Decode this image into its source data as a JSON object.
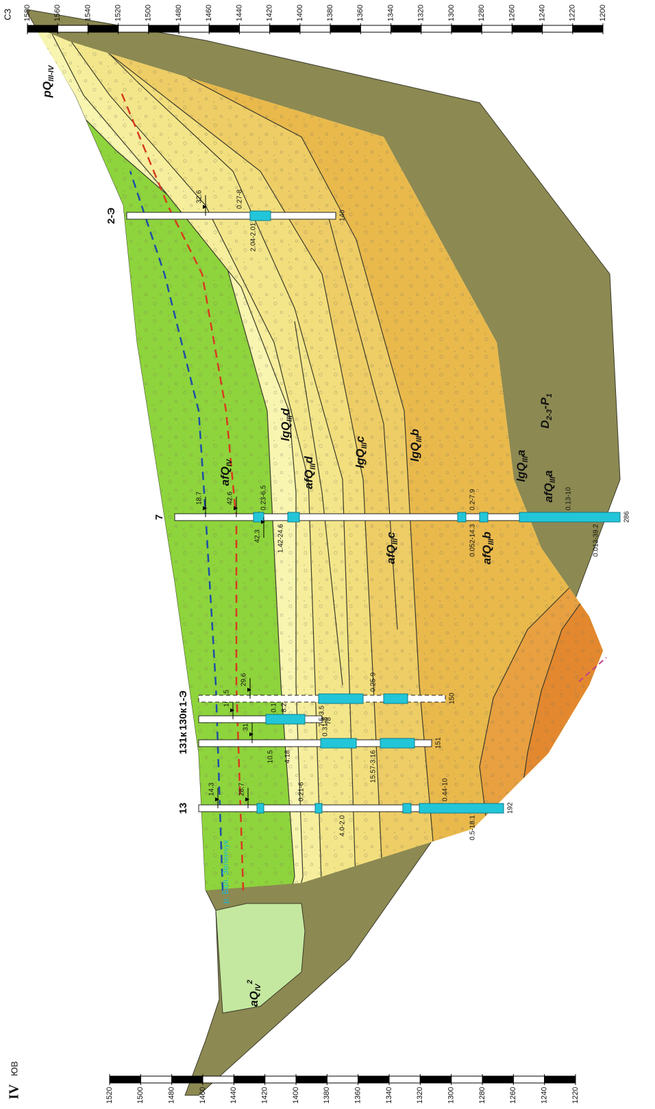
{
  "header": {
    "section": "IV",
    "left_direction": "ЮВ",
    "right_direction": "СЗ"
  },
  "scales": {
    "left": [
      1520,
      1500,
      1480,
      1460,
      1440,
      1420,
      1400,
      1380,
      1360,
      1340,
      1320,
      1300,
      1280,
      1260,
      1240,
      1220
    ],
    "right": [
      1580,
      1560,
      1540,
      1520,
      1500,
      1480,
      1460,
      1440,
      1420,
      1400,
      1380,
      1360,
      1340,
      1320,
      1300,
      1280,
      1260,
      1240,
      1220,
      1200
    ]
  },
  "river": "р. Бол. Зеленчук",
  "units": [
    {
      "parts": [
        {
          "text": "pQ"
        },
        {
          "text": "III-IV",
          "style": "sub"
        }
      ]
    },
    {
      "parts": [
        {
          "text": "afQ"
        },
        {
          "text": "IV",
          "style": "sub"
        }
      ]
    },
    {
      "parts": [
        {
          "text": "lgQ"
        },
        {
          "text": "III",
          "style": "sub"
        },
        {
          "text": "d"
        }
      ]
    },
    {
      "parts": [
        {
          "text": "afQ"
        },
        {
          "text": "III",
          "style": "sub"
        },
        {
          "text": "d"
        }
      ]
    },
    {
      "parts": [
        {
          "text": "lgQ"
        },
        {
          "text": "III",
          "style": "sub"
        },
        {
          "text": "c"
        }
      ]
    },
    {
      "parts": [
        {
          "text": "afQ"
        },
        {
          "text": "III",
          "style": "sub"
        },
        {
          "text": "c"
        }
      ]
    },
    {
      "parts": [
        {
          "text": "lgQ"
        },
        {
          "text": "III",
          "style": "sub"
        },
        {
          "text": "b"
        }
      ]
    },
    {
      "parts": [
        {
          "text": "afQ"
        },
        {
          "text": "III",
          "style": "sub"
        },
        {
          "text": "b"
        }
      ]
    },
    {
      "parts": [
        {
          "text": "lgQ"
        },
        {
          "text": "III",
          "style": "sub"
        },
        {
          "text": "a"
        }
      ]
    },
    {
      "parts": [
        {
          "text": "afQ"
        },
        {
          "text": "III",
          "style": "sub"
        },
        {
          "text": "a"
        }
      ]
    },
    {
      "parts": [
        {
          "text": "aQ"
        },
        {
          "text": "IV",
          "style": "sub"
        },
        {
          "text": "2",
          "style": "sup"
        }
      ]
    },
    {
      "parts": [
        {
          "text": "D"
        },
        {
          "text": "2-3",
          "style": "sub"
        },
        {
          "text": "-P"
        },
        {
          "text": "1",
          "style": "sub"
        }
      ]
    }
  ],
  "boreholes": [
    {
      "name": "13",
      "depth": 192,
      "levels": [
        14.3,
        28.7
      ],
      "notes": [
        "0.5-18.1",
        "0.21-6",
        "4.0-2.0",
        "0.44-10"
      ]
    },
    {
      "name": "131к",
      "depth": 151,
      "levels": [
        31.7
      ],
      "notes": [
        "15.57-3.16",
        "0.31-8",
        "10.5",
        "4.18"
      ]
    },
    {
      "name": "130к",
      "depth": 78,
      "levels": [
        10.15
      ],
      "notes": [
        "0.14",
        "8.2"
      ]
    },
    {
      "name": "1-Э",
      "depth": 150,
      "levels": [
        29.6
      ],
      "notes": [
        "7.5-3.5",
        "0.25-9"
      ]
    },
    {
      "name": "7",
      "depth": 286,
      "levels": [
        18.7,
        42.6,
        42.3
      ],
      "notes": [
        "1.42-24.6",
        "0.23-6.5",
        "0.052-14.3",
        "0.2-7.9",
        "0.013-39.2",
        "0.13-10"
      ]
    },
    {
      "name": "2-Э",
      "depth": 140,
      "levels": [
        32.6
      ],
      "notes": [
        "2.04-2.01",
        "0.27-8"
      ]
    }
  ]
}
